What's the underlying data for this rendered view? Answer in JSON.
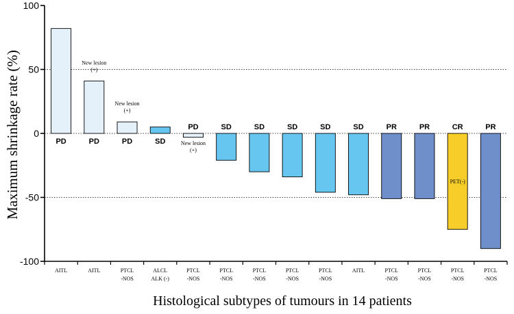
{
  "chart_data": {
    "type": "bar",
    "title": "",
    "xlabel": "Histological subtypes of tumours in 14 patients",
    "ylabel": "Maximum shrinkage rate (%)",
    "ylim": [
      -100,
      100
    ],
    "yticks": [
      "100",
      "50",
      "0",
      "-50",
      "-100"
    ],
    "gridlines": [
      50,
      -50
    ],
    "categories": [
      [
        "AITL"
      ],
      [
        "AITL"
      ],
      [
        "PTCL",
        "-NOS"
      ],
      [
        "ALCL",
        "ALK (-)"
      ],
      [
        "PTCL",
        "-NOS"
      ],
      [
        "PTCL",
        "-NOS"
      ],
      [
        "PTCL",
        "-NOS"
      ],
      [
        "PTCL",
        "-NOS"
      ],
      [
        "PTCL",
        "-NOS"
      ],
      [
        "AITL"
      ],
      [
        "PTCL",
        "-NOS"
      ],
      [
        "PTCL",
        "-NOS"
      ],
      [
        "PTCL",
        "-NOS"
      ],
      [
        "PTCL",
        "-NOS"
      ]
    ],
    "values": [
      82,
      41,
      9,
      5,
      -3,
      -21,
      -30,
      -34,
      -46,
      -48,
      -51,
      -51,
      -75,
      -90
    ],
    "responses": [
      "PD",
      "PD",
      "PD",
      "SD",
      "PD",
      "SD",
      "SD",
      "SD",
      "SD",
      "SD",
      "PR",
      "PR",
      "CR",
      "PR"
    ],
    "notes": [
      "",
      [
        "New lesion",
        "(+)"
      ],
      [
        "New lesion",
        "(+)"
      ],
      "",
      [
        "New lesion",
        "(+)"
      ],
      "",
      "",
      "",
      "",
      "",
      "",
      "",
      "PET(-)",
      ""
    ],
    "colors": {
      "PD": "#e4f1fb",
      "SD": "#66c6f0",
      "PR": "#6f8fcb",
      "CR": "#f7cd2a"
    }
  }
}
